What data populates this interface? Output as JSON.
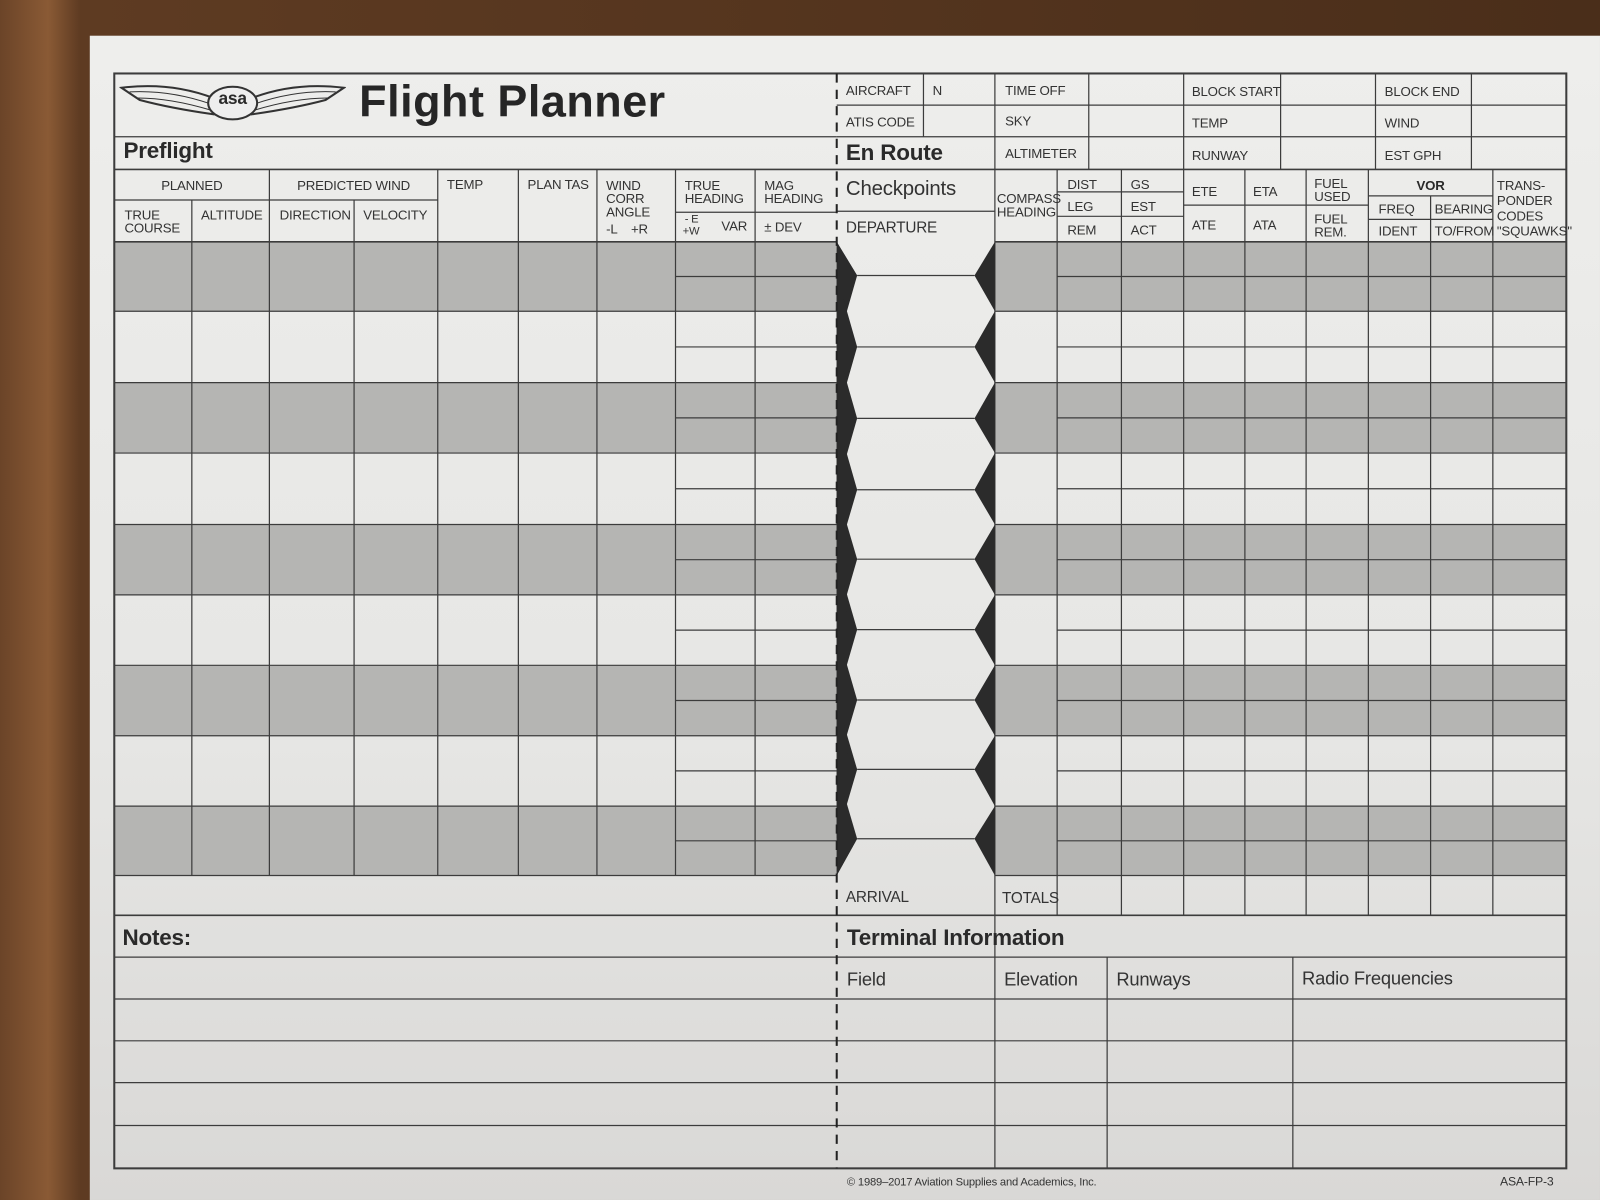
{
  "colors": {
    "paper": "#e8e8e6",
    "shade": "#b5b5b3",
    "line": "#3c3c3c",
    "checkpoint_marker": "#2b2b2b"
  },
  "header": {
    "logo_text": "asa",
    "title": "Flight Planner",
    "preflight": "Preflight",
    "en_route": "En Route"
  },
  "top_fields": {
    "aircraft": "AIRCRAFT",
    "aircraft_prefix": "N",
    "time_off": "TIME OFF",
    "block_start": "BLOCK START",
    "block_end": "BLOCK END",
    "atis_code": "ATIS CODE",
    "sky": "SKY",
    "temp": "TEMP",
    "wind": "WIND",
    "altimeter": "ALTIMETER",
    "runway": "RUNWAY",
    "est_gph": "EST GPH"
  },
  "preflight": {
    "planned": "PLANNED",
    "true_course": [
      "TRUE",
      "COURSE"
    ],
    "altitude": "ALTITUDE",
    "predicted_wind": "PREDICTED WIND",
    "direction": "DIRECTION",
    "velocity": "VELOCITY",
    "temp": "TEMP",
    "plan_tas": "PLAN TAS",
    "wind_corr_angle": [
      "WIND",
      "CORR",
      "ANGLE"
    ],
    "wca_sign": "-L    +R",
    "true_heading": [
      "TRUE",
      "HEADING"
    ],
    "var_sign": [
      "- E",
      "+W"
    ],
    "var": "VAR",
    "mag_heading": [
      "MAG",
      "HEADING"
    ],
    "dev": "± DEV"
  },
  "en_route": {
    "checkpoints": "Checkpoints",
    "departure": "DEPARTURE",
    "arrival": "ARRIVAL",
    "compass_heading": [
      "COMPASS",
      "HEADING"
    ],
    "dist": "DIST",
    "leg": "LEG",
    "rem": "REM",
    "gs": "GS",
    "est": "EST",
    "act": "ACT",
    "ete": "ETE",
    "ate": "ATE",
    "eta": "ETA",
    "ata": "ATA",
    "fuel_used": [
      "FUEL",
      "USED"
    ],
    "fuel_rem": [
      "FUEL",
      "REM."
    ],
    "vor": "VOR",
    "freq": "FREQ",
    "ident": "IDENT",
    "bearing": "BEARING",
    "to_from": "TO/FROM",
    "transponder": [
      "TRANS-",
      "PONDER",
      "CODES",
      "\"SQUAWKS\""
    ],
    "totals": "TOTALS"
  },
  "notes": {
    "label": "Notes:"
  },
  "terminal": {
    "label": "Terminal Information",
    "field": "Field",
    "elevation": "Elevation",
    "runways": "Runways",
    "radio_frequencies": "Radio Frequencies"
  },
  "footer": {
    "copyright": "© 1989–2017 Aviation Supplies and Academics, Inc.",
    "form_id": "ASA-FP-3"
  }
}
